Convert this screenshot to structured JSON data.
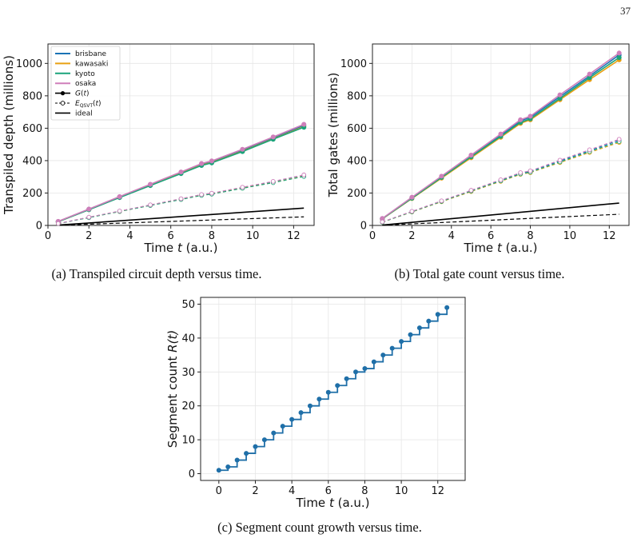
{
  "page_number": "37",
  "colors": {
    "brisbane": "#1a73b5",
    "kawasaki": "#e8a013",
    "kyoto": "#1aa37a",
    "osaka": "#cf7fba",
    "ideal": "#000000",
    "step": "#1f6fa8",
    "qsvt_fill": "#ffffff"
  },
  "captions": {
    "a": "(a) Transpiled circuit depth versus time.",
    "b": "(b) Total gate count versus time.",
    "c": "(c) Segment count growth versus time."
  },
  "chart_data": [
    {
      "id": "a",
      "type": "line",
      "xlabel": "Time t (a.u.)",
      "ylabel": "Transpiled depth (millions)",
      "xlim": [
        0,
        13
      ],
      "ylim": [
        0,
        1120
      ],
      "xticks": [
        0,
        2,
        4,
        6,
        8,
        10,
        12
      ],
      "yticks": [
        0,
        200,
        400,
        600,
        800,
        1000
      ],
      "grid": true,
      "legend_position": "top-left",
      "legend": [
        "brisbane",
        "kawasaki",
        "kyoto",
        "osaka",
        "G(t)",
        "E_QSVT(t)",
        "ideal"
      ],
      "x": [
        0.5,
        2,
        3.5,
        5,
        6.5,
        7.5,
        8,
        9.5,
        11,
        12.5
      ],
      "series": [
        {
          "name": "brisbane",
          "kind": "G",
          "values": [
            24,
            100,
            176,
            252,
            326,
            378,
            394,
            464,
            540,
            618
          ]
        },
        {
          "name": "kawasaki",
          "kind": "G",
          "values": [
            23,
            98,
            174,
            248,
            322,
            372,
            388,
            458,
            534,
            610
          ]
        },
        {
          "name": "kyoto",
          "kind": "G",
          "values": [
            23,
            97,
            172,
            246,
            320,
            370,
            386,
            456,
            532,
            606
          ]
        },
        {
          "name": "osaka",
          "kind": "G",
          "values": [
            25,
            101,
            178,
            254,
            330,
            382,
            398,
            470,
            546,
            624
          ]
        },
        {
          "name": "brisbane",
          "kind": "E",
          "values": [
            12,
            50,
            88,
            126,
            164,
            190,
            198,
            234,
            270,
            310
          ]
        },
        {
          "name": "kawasaki",
          "kind": "E",
          "values": [
            11,
            49,
            86,
            124,
            161,
            186,
            194,
            230,
            265,
            304
          ]
        },
        {
          "name": "kyoto",
          "kind": "E",
          "values": [
            11,
            48,
            86,
            123,
            160,
            185,
            193,
            229,
            264,
            302
          ]
        },
        {
          "name": "osaka",
          "kind": "E",
          "values": [
            12,
            51,
            89,
            127,
            165,
            191,
            199,
            236,
            272,
            312
          ]
        }
      ],
      "ideal": {
        "x": [
          0.5,
          12.5
        ],
        "solid": [
          2,
          107
        ],
        "dashed": [
          1,
          53
        ]
      }
    },
    {
      "id": "b",
      "type": "line",
      "xlabel": "Time t (a.u.)",
      "ylabel": "Total gates (millions)",
      "xlim": [
        0,
        13
      ],
      "ylim": [
        0,
        1120
      ],
      "xticks": [
        0,
        2,
        4,
        6,
        8,
        10,
        12
      ],
      "yticks": [
        0,
        200,
        400,
        600,
        800,
        1000
      ],
      "grid": true,
      "x": [
        0.5,
        2,
        3.5,
        5,
        6.5,
        7.5,
        8,
        9.5,
        11,
        12.5
      ],
      "series": [
        {
          "name": "brisbane",
          "kind": "G",
          "values": [
            42,
            172,
            300,
            430,
            558,
            645,
            668,
            795,
            922,
            1052
          ]
        },
        {
          "name": "kawasaki",
          "kind": "G",
          "values": [
            40,
            166,
            292,
            418,
            544,
            630,
            652,
            776,
            900,
            1022
          ]
        },
        {
          "name": "kyoto",
          "kind": "G",
          "values": [
            41,
            168,
            296,
            424,
            550,
            636,
            658,
            784,
            912,
            1036
          ]
        },
        {
          "name": "osaka",
          "kind": "G",
          "values": [
            43,
            174,
            304,
            434,
            564,
            652,
            674,
            806,
            934,
            1064
          ]
        },
        {
          "name": "brisbane",
          "kind": "E",
          "values": [
            21,
            86,
            150,
            215,
            279,
            322,
            334,
            398,
            461,
            526
          ]
        },
        {
          "name": "kawasaki",
          "kind": "E",
          "values": [
            20,
            83,
            146,
            209,
            272,
            315,
            326,
            388,
            450,
            512
          ]
        },
        {
          "name": "kyoto",
          "kind": "E",
          "values": [
            20,
            84,
            148,
            212,
            275,
            318,
            329,
            392,
            456,
            518
          ]
        },
        {
          "name": "osaka",
          "kind": "E",
          "values": [
            22,
            87,
            152,
            217,
            282,
            326,
            337,
            403,
            467,
            532
          ]
        }
      ],
      "ideal": {
        "x": [
          0.5,
          12.5
        ],
        "solid": [
          2,
          138
        ],
        "dashed": [
          1,
          69
        ]
      }
    },
    {
      "id": "c",
      "type": "step",
      "xlabel": "Time t (a.u.)",
      "ylabel": "Segment count R(t)",
      "xlim": [
        -1,
        13.5
      ],
      "ylim": [
        -2,
        52
      ],
      "xticks": [
        0,
        2,
        4,
        6,
        8,
        10,
        12
      ],
      "yticks": [
        0,
        10,
        20,
        30,
        40,
        50
      ],
      "grid": true,
      "x": [
        0,
        0.5,
        1,
        1.5,
        2,
        2.5,
        3,
        3.5,
        4,
        4.5,
        5,
        5.5,
        6,
        6.5,
        7,
        7.5,
        8,
        8.5,
        9,
        9.5,
        10,
        10.5,
        11,
        11.5,
        12,
        12.5
      ],
      "values": [
        1,
        2,
        4,
        6,
        8,
        10,
        12,
        14,
        16,
        18,
        20,
        22,
        24,
        26,
        28,
        30,
        31,
        33,
        35,
        37,
        39,
        41,
        43,
        45,
        47,
        49
      ]
    }
  ]
}
